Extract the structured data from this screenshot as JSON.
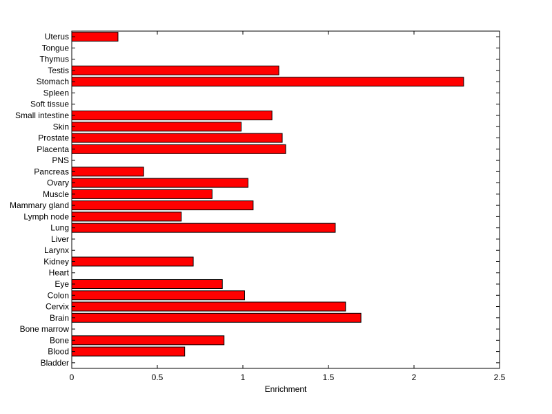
{
  "chart_data": {
    "type": "bar",
    "orientation": "horizontal",
    "xlabel": "Enrichment",
    "ylabel": "",
    "title": "",
    "xlim": [
      0,
      2.5
    ],
    "xticks": [
      "0",
      "0.5",
      "1",
      "1.5",
      "2",
      "2.5"
    ],
    "xtick_values": [
      0,
      0.5,
      1,
      1.5,
      2,
      2.5
    ],
    "grid": false,
    "bar_color": "#ff0000",
    "bar_edge_color": "#000000",
    "categories": [
      "Bladder",
      "Blood",
      "Bone",
      "Bone marrow",
      "Brain",
      "Cervix",
      "Colon",
      "Eye",
      "Heart",
      "Kidney",
      "Larynx",
      "Liver",
      "Lung",
      "Lymph node",
      "Mammary gland",
      "Muscle",
      "Ovary",
      "Pancreas",
      "PNS",
      "Placenta",
      "Prostate",
      "Skin",
      "Small intestine",
      "Soft tissue",
      "Spleen",
      "Stomach",
      "Testis",
      "Thymus",
      "Tongue",
      "Uterus"
    ],
    "values": [
      0,
      0.66,
      0.89,
      0,
      1.69,
      1.6,
      1.01,
      0.88,
      0,
      0.71,
      0,
      0,
      1.54,
      0.64,
      1.06,
      0.82,
      1.03,
      0.42,
      0,
      1.25,
      1.23,
      0.99,
      1.17,
      0,
      0,
      2.29,
      1.21,
      0,
      0,
      0.27
    ]
  }
}
